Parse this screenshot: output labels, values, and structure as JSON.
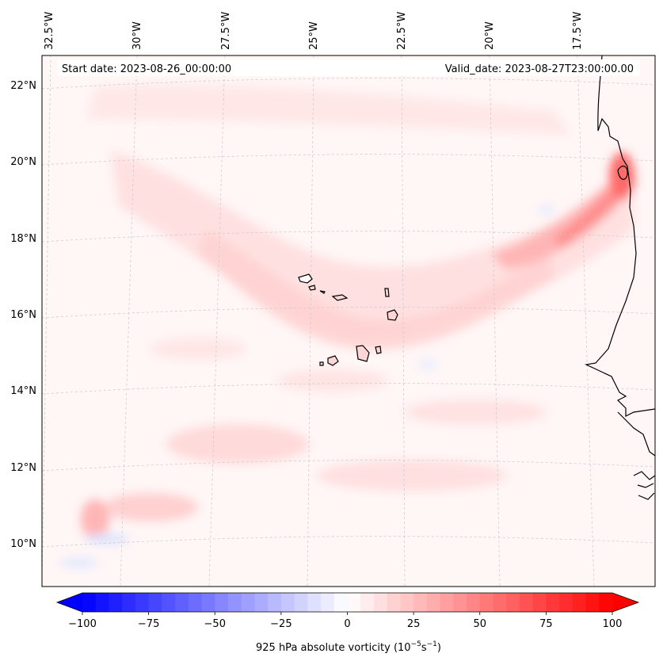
{
  "map": {
    "start_label": "Start date: 2023-08-26_00:00:00",
    "valid_label": "Valid_date: 2023-08-27T23:00:00.00",
    "longitude_labels": [
      "32.5°W",
      "30°W",
      "27.5°W",
      "25°W",
      "22.5°W",
      "20°W",
      "17.5°W"
    ],
    "latitude_labels": [
      "22°N",
      "20°N",
      "18°N",
      "16°N",
      "14°N",
      "12°N",
      "10°N"
    ]
  },
  "colorbar": {
    "min": -100,
    "max": 100,
    "tick_labels": [
      "−100",
      "−75",
      "−50",
      "−25",
      "0",
      "25",
      "50",
      "75",
      "100"
    ],
    "label_main": "925 hPa absolute vorticity (10",
    "label_exp1": "−5",
    "label_mid": "s",
    "label_exp2": "−1",
    "label_end": ")"
  },
  "colors": {
    "negative": "#0000ff",
    "neutral": "#ffffff",
    "positive": "#ff0000",
    "coastline": "#000000",
    "gridline": "#c8c8c8"
  },
  "icons": {
    "colorbar_left": "triangle-left",
    "colorbar_right": "triangle-right"
  }
}
